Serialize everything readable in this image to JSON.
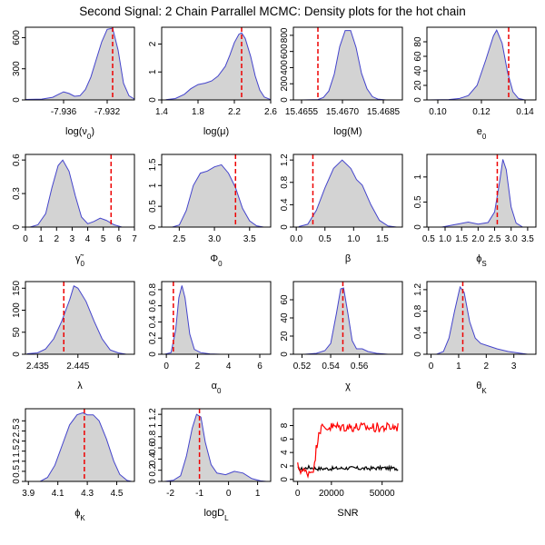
{
  "title": "Second Signal: 2 Chain Parrallel MCMC: Density plots for the hot chain",
  "colors": {
    "density_line": "#4444cc",
    "density_fill": "#d3d3d3",
    "marker": "#ee0000",
    "trace_hot": "#ff0000",
    "trace_cold": "#000000"
  },
  "chart_data": [
    {
      "type": "area",
      "xlabel": "log(ν0)",
      "xticks": [
        -7.936,
        -7.932
      ],
      "xtick_labels": [
        "-7.936",
        "-7.932"
      ],
      "xlim": [
        -7.9395,
        -7.9295
      ],
      "yticks": [
        0,
        300,
        600
      ],
      "ylim": [
        0,
        700
      ],
      "marker": -7.9315,
      "density": [
        [
          -7.9395,
          4
        ],
        [
          -7.938,
          8
        ],
        [
          -7.937,
          25
        ],
        [
          -7.9365,
          52
        ],
        [
          -7.936,
          78
        ],
        [
          -7.9355,
          62
        ],
        [
          -7.935,
          35
        ],
        [
          -7.9345,
          40
        ],
        [
          -7.934,
          100
        ],
        [
          -7.9335,
          220
        ],
        [
          -7.933,
          390
        ],
        [
          -7.9325,
          560
        ],
        [
          -7.932,
          680
        ],
        [
          -7.9315,
          690
        ],
        [
          -7.931,
          480
        ],
        [
          -7.9305,
          160
        ],
        [
          -7.93,
          40
        ],
        [
          -7.9295,
          8
        ]
      ]
    },
    {
      "type": "area",
      "xlabel": "log(μ)",
      "xticks": [
        1.4,
        1.8,
        2.2,
        2.6
      ],
      "xtick_labels": [
        "1.4",
        "1.8",
        "2.2",
        "2.6"
      ],
      "xlim": [
        1.4,
        2.6
      ],
      "yticks": [
        0,
        1,
        2
      ],
      "ylim": [
        0,
        2.6
      ],
      "marker": 2.28,
      "density": [
        [
          1.45,
          0.01
        ],
        [
          1.55,
          0.05
        ],
        [
          1.65,
          0.2
        ],
        [
          1.72,
          0.4
        ],
        [
          1.8,
          0.55
        ],
        [
          1.88,
          0.6
        ],
        [
          1.95,
          0.68
        ],
        [
          2.02,
          0.85
        ],
        [
          2.1,
          1.2
        ],
        [
          2.15,
          1.6
        ],
        [
          2.2,
          2.05
        ],
        [
          2.25,
          2.35
        ],
        [
          2.28,
          2.4
        ],
        [
          2.32,
          2.2
        ],
        [
          2.38,
          1.55
        ],
        [
          2.43,
          0.85
        ],
        [
          2.48,
          0.35
        ],
        [
          2.53,
          0.1
        ],
        [
          2.6,
          0.01
        ]
      ]
    },
    {
      "type": "area",
      "xlabel": "log(M)",
      "xticks": [
        15.4655,
        15.467,
        15.4685
      ],
      "xtick_labels": [
        "15.4655",
        "15.4670",
        "15.4685"
      ],
      "xlim": [
        15.4652,
        15.4692
      ],
      "yticks": [
        0,
        200,
        400,
        600,
        800
      ],
      "ylim": [
        0,
        900
      ],
      "marker": 15.4661,
      "density": [
        [
          15.4655,
          0
        ],
        [
          15.4661,
          4
        ],
        [
          15.4663,
          30
        ],
        [
          15.4665,
          110
        ],
        [
          15.4667,
          320
        ],
        [
          15.4669,
          660
        ],
        [
          15.4671,
          860
        ],
        [
          15.4673,
          860
        ],
        [
          15.4675,
          650
        ],
        [
          15.4677,
          330
        ],
        [
          15.4679,
          140
        ],
        [
          15.4681,
          40
        ],
        [
          15.4683,
          10
        ],
        [
          15.4686,
          0
        ]
      ]
    },
    {
      "type": "area",
      "xlabel": "e0",
      "xticks": [
        0.1,
        0.12,
        0.14
      ],
      "xtick_labels": [
        "0.10",
        "0.12",
        "0.14"
      ],
      "xlim": [
        0.095,
        0.145
      ],
      "yticks": [
        0,
        20,
        40,
        60,
        80
      ],
      "ylim": [
        0,
        100
      ],
      "marker": 0.1325,
      "density": [
        [
          0.095,
          0
        ],
        [
          0.105,
          0.5
        ],
        [
          0.11,
          2
        ],
        [
          0.114,
          6
        ],
        [
          0.118,
          20
        ],
        [
          0.122,
          55
        ],
        [
          0.1255,
          88
        ],
        [
          0.127,
          96
        ],
        [
          0.1295,
          78
        ],
        [
          0.132,
          38
        ],
        [
          0.1345,
          11
        ],
        [
          0.137,
          2
        ],
        [
          0.14,
          0
        ]
      ]
    },
    {
      "type": "area",
      "xlabel": "γ0",
      "xticks": [
        0,
        1,
        2,
        3,
        4,
        5,
        6,
        7
      ],
      "xtick_labels": [
        "0",
        "1",
        "2",
        "3",
        "4",
        "5",
        "6",
        "7"
      ],
      "xlim": [
        0,
        7
      ],
      "yticks": [
        0,
        0.3,
        0.6
      ],
      "ylim": [
        0,
        0.65
      ],
      "marker": 5.5,
      "density": [
        [
          0.3,
          0
        ],
        [
          0.8,
          0.02
        ],
        [
          1.3,
          0.12
        ],
        [
          1.7,
          0.35
        ],
        [
          2.1,
          0.55
        ],
        [
          2.4,
          0.6
        ],
        [
          2.8,
          0.5
        ],
        [
          3.2,
          0.28
        ],
        [
          3.6,
          0.09
        ],
        [
          4.0,
          0.03
        ],
        [
          4.4,
          0.05
        ],
        [
          4.8,
          0.08
        ],
        [
          5.2,
          0.06
        ],
        [
          5.7,
          0.02
        ],
        [
          6.2,
          0
        ]
      ]
    },
    {
      "type": "area",
      "xlabel": "Φ0",
      "xticks": [
        2.5,
        3.0,
        3.5
      ],
      "xtick_labels": [
        "2.5",
        "3.0",
        "3.5"
      ],
      "xlim": [
        2.25,
        3.8
      ],
      "yticks": [
        0,
        0.5,
        1.0,
        1.5
      ],
      "ylim": [
        0,
        1.75
      ],
      "marker": 3.3,
      "density": [
        [
          2.4,
          0
        ],
        [
          2.5,
          0.05
        ],
        [
          2.6,
          0.4
        ],
        [
          2.7,
          1.0
        ],
        [
          2.8,
          1.3
        ],
        [
          2.9,
          1.35
        ],
        [
          3.0,
          1.45
        ],
        [
          3.1,
          1.5
        ],
        [
          3.2,
          1.3
        ],
        [
          3.3,
          0.95
        ],
        [
          3.4,
          0.45
        ],
        [
          3.5,
          0.15
        ],
        [
          3.6,
          0.03
        ],
        [
          3.7,
          0
        ]
      ]
    },
    {
      "type": "area",
      "xlabel": "β",
      "xticks": [
        0,
        0.5,
        1.0,
        1.5
      ],
      "xtick_labels": [
        "0.0",
        "0.5",
        "1.0",
        "1.5"
      ],
      "xlim": [
        -0.05,
        1.85
      ],
      "yticks": [
        0,
        0.4,
        0.8,
        1.2
      ],
      "ylim": [
        0,
        1.3
      ],
      "marker": 0.29,
      "density": [
        [
          0.05,
          0.01
        ],
        [
          0.2,
          0.05
        ],
        [
          0.35,
          0.3
        ],
        [
          0.5,
          0.7
        ],
        [
          0.65,
          1.05
        ],
        [
          0.8,
          1.2
        ],
        [
          0.95,
          1.05
        ],
        [
          1.05,
          0.85
        ],
        [
          1.15,
          0.75
        ],
        [
          1.3,
          0.4
        ],
        [
          1.45,
          0.12
        ],
        [
          1.6,
          0.02
        ],
        [
          1.75,
          0
        ]
      ]
    },
    {
      "type": "area",
      "xlabel": "ϕS",
      "xticks": [
        0.5,
        1.0,
        1.5,
        2.0,
        2.5,
        3.0,
        3.5
      ],
      "xtick_labels": [
        "0.5",
        "1.0",
        "1.5",
        "2.0",
        "2.5",
        "3.0",
        "3.5"
      ],
      "xlim": [
        0.45,
        3.75
      ],
      "yticks": [
        0,
        0.5,
        1.0
      ],
      "ylim": [
        0,
        1.45
      ],
      "marker": 2.58,
      "density": [
        [
          0.9,
          0
        ],
        [
          1.3,
          0.05
        ],
        [
          1.7,
          0.1
        ],
        [
          2.0,
          0.06
        ],
        [
          2.3,
          0.09
        ],
        [
          2.5,
          0.3
        ],
        [
          2.65,
          0.9
        ],
        [
          2.75,
          1.35
        ],
        [
          2.85,
          1.15
        ],
        [
          3.0,
          0.4
        ],
        [
          3.15,
          0.08
        ],
        [
          3.35,
          0
        ]
      ]
    },
    {
      "type": "area",
      "xlabel": "λ",
      "xticks": [
        2.435,
        2.445,
        2.455
      ],
      "xtick_labels": [
        "2.435",
        "2.445",
        ""
      ],
      "xlim": [
        2.432,
        2.459
      ],
      "yticks": [
        0,
        50,
        100,
        150
      ],
      "ylim": [
        0,
        165
      ],
      "marker": 2.4415,
      "density": [
        [
          2.4325,
          1
        ],
        [
          2.435,
          3
        ],
        [
          2.437,
          12
        ],
        [
          2.439,
          35
        ],
        [
          2.441,
          75
        ],
        [
          2.443,
          125
        ],
        [
          2.444,
          155
        ],
        [
          2.445,
          150
        ],
        [
          2.447,
          120
        ],
        [
          2.449,
          75
        ],
        [
          2.451,
          35
        ],
        [
          2.453,
          10
        ],
        [
          2.455,
          3
        ],
        [
          2.457,
          0
        ]
      ]
    },
    {
      "type": "area",
      "xlabel": "α0",
      "xticks": [
        0,
        2,
        4,
        6
      ],
      "xtick_labels": [
        "0",
        "2",
        "4",
        "6"
      ],
      "xlim": [
        -0.3,
        6.7
      ],
      "yticks": [
        0,
        0.2,
        0.4,
        0.6,
        0.8
      ],
      "ylim": [
        0,
        0.9
      ],
      "marker": 0.45,
      "density": [
        [
          -0.1,
          0
        ],
        [
          0.3,
          0.02
        ],
        [
          0.6,
          0.3
        ],
        [
          0.8,
          0.7
        ],
        [
          1.0,
          0.85
        ],
        [
          1.2,
          0.7
        ],
        [
          1.5,
          0.25
        ],
        [
          1.8,
          0.06
        ],
        [
          2.2,
          0.02
        ],
        [
          2.8,
          0.005
        ],
        [
          3.5,
          0
        ]
      ]
    },
    {
      "type": "area",
      "xlabel": "χ",
      "xticks": [
        0.52,
        0.54,
        0.56
      ],
      "xtick_labels": [
        "0.52",
        "0.54",
        "0.56"
      ],
      "xlim": [
        0.514,
        0.59
      ],
      "yticks": [
        0,
        20,
        40,
        60
      ],
      "ylim": [
        0,
        80
      ],
      "marker": 0.5485,
      "density": [
        [
          0.522,
          0
        ],
        [
          0.53,
          1
        ],
        [
          0.536,
          4
        ],
        [
          0.54,
          12
        ],
        [
          0.544,
          45
        ],
        [
          0.547,
          72
        ],
        [
          0.549,
          73
        ],
        [
          0.552,
          45
        ],
        [
          0.555,
          15
        ],
        [
          0.558,
          6
        ],
        [
          0.562,
          6
        ],
        [
          0.566,
          3
        ],
        [
          0.572,
          1
        ],
        [
          0.58,
          0
        ]
      ]
    },
    {
      "type": "area",
      "xlabel": "θK",
      "xticks": [
        0,
        1,
        2,
        3
      ],
      "xtick_labels": [
        "0",
        "1",
        "2",
        "3"
      ],
      "xlim": [
        -0.15,
        3.8
      ],
      "yticks": [
        0,
        0.4,
        0.8,
        1.2
      ],
      "ylim": [
        0,
        1.35
      ],
      "marker": 1.15,
      "density": [
        [
          0.2,
          0
        ],
        [
          0.45,
          0.05
        ],
        [
          0.65,
          0.3
        ],
        [
          0.85,
          0.8
        ],
        [
          1.05,
          1.25
        ],
        [
          1.2,
          1.15
        ],
        [
          1.4,
          0.6
        ],
        [
          1.6,
          0.3
        ],
        [
          1.8,
          0.2
        ],
        [
          2.1,
          0.15
        ],
        [
          2.4,
          0.1
        ],
        [
          2.8,
          0.05
        ],
        [
          3.2,
          0.02
        ],
        [
          3.5,
          0
        ]
      ]
    },
    {
      "type": "area",
      "xlabel": "ϕK",
      "xticks": [
        3.9,
        4.1,
        4.3,
        4.5
      ],
      "xtick_labels": [
        "3.9",
        "4.1",
        "4.3",
        "4.5"
      ],
      "xlim": [
        3.88,
        4.62
      ],
      "yticks": [
        0,
        0.5,
        1.0,
        1.5,
        2.0,
        2.5,
        3.0
      ],
      "ylim": [
        0,
        3.6
      ],
      "marker": 4.28,
      "density": [
        [
          3.98,
          0
        ],
        [
          4.03,
          0.2
        ],
        [
          4.08,
          0.8
        ],
        [
          4.13,
          1.8
        ],
        [
          4.18,
          2.8
        ],
        [
          4.23,
          3.3
        ],
        [
          4.27,
          3.4
        ],
        [
          4.3,
          3.3
        ],
        [
          4.34,
          3.3
        ],
        [
          4.38,
          3.0
        ],
        [
          4.43,
          2.1
        ],
        [
          4.48,
          1.0
        ],
        [
          4.52,
          0.35
        ],
        [
          4.57,
          0.05
        ],
        [
          4.6,
          0
        ]
      ]
    },
    {
      "type": "area",
      "xlabel": "logDL",
      "xticks": [
        -2,
        -1,
        0,
        1
      ],
      "xtick_labels": [
        "-2",
        "-1",
        "0",
        "1"
      ],
      "xlim": [
        -2.3,
        1.45
      ],
      "yticks": [
        0,
        0.2,
        0.4,
        0.6,
        0.8,
        1.0,
        1.2
      ],
      "ylim": [
        0,
        1.3
      ],
      "marker": -1.0,
      "density": [
        [
          -2.2,
          0
        ],
        [
          -1.9,
          0.02
        ],
        [
          -1.65,
          0.1
        ],
        [
          -1.45,
          0.45
        ],
        [
          -1.25,
          0.95
        ],
        [
          -1.1,
          1.2
        ],
        [
          -0.95,
          1.15
        ],
        [
          -0.8,
          0.7
        ],
        [
          -0.6,
          0.3
        ],
        [
          -0.4,
          0.15
        ],
        [
          -0.1,
          0.12
        ],
        [
          0.2,
          0.18
        ],
        [
          0.5,
          0.15
        ],
        [
          0.8,
          0.05
        ],
        [
          1.1,
          0.01
        ],
        [
          1.3,
          0
        ]
      ]
    },
    {
      "type": "line",
      "xlabel": "SNR",
      "xticks": [
        0,
        20000,
        50000
      ],
      "xtick_labels": [
        "0",
        "20000",
        "50000"
      ],
      "xlim": [
        -2500,
        62000
      ],
      "yticks": [
        0,
        2,
        4,
        6,
        8
      ],
      "ylim": [
        -0.3,
        10.5
      ],
      "series": [
        {
          "color": "trace_cold",
          "points": [
            [
              0,
              1.6
            ],
            [
              3000,
              1.5
            ],
            [
              6000,
              1.8
            ],
            [
              9000,
              1.7
            ],
            [
              12000,
              1.6
            ],
            [
              20000,
              1.6
            ],
            [
              30000,
              1.7
            ],
            [
              40000,
              1.6
            ],
            [
              50000,
              1.7
            ],
            [
              60000,
              1.6
            ]
          ],
          "noise": 0.28
        },
        {
          "color": "trace_hot",
          "points": [
            [
              0,
              1.9
            ],
            [
              3000,
              1.2
            ],
            [
              5500,
              1.0
            ],
            [
              8000,
              1.3
            ],
            [
              10000,
              2.0
            ],
            [
              11000,
              4.5
            ],
            [
              12500,
              7.2
            ],
            [
              14000,
              7.6
            ],
            [
              20000,
              7.8
            ],
            [
              30000,
              7.8
            ],
            [
              40000,
              7.7
            ],
            [
              50000,
              7.7
            ],
            [
              60000,
              7.8
            ]
          ],
          "noise": 0.75
        }
      ]
    }
  ]
}
